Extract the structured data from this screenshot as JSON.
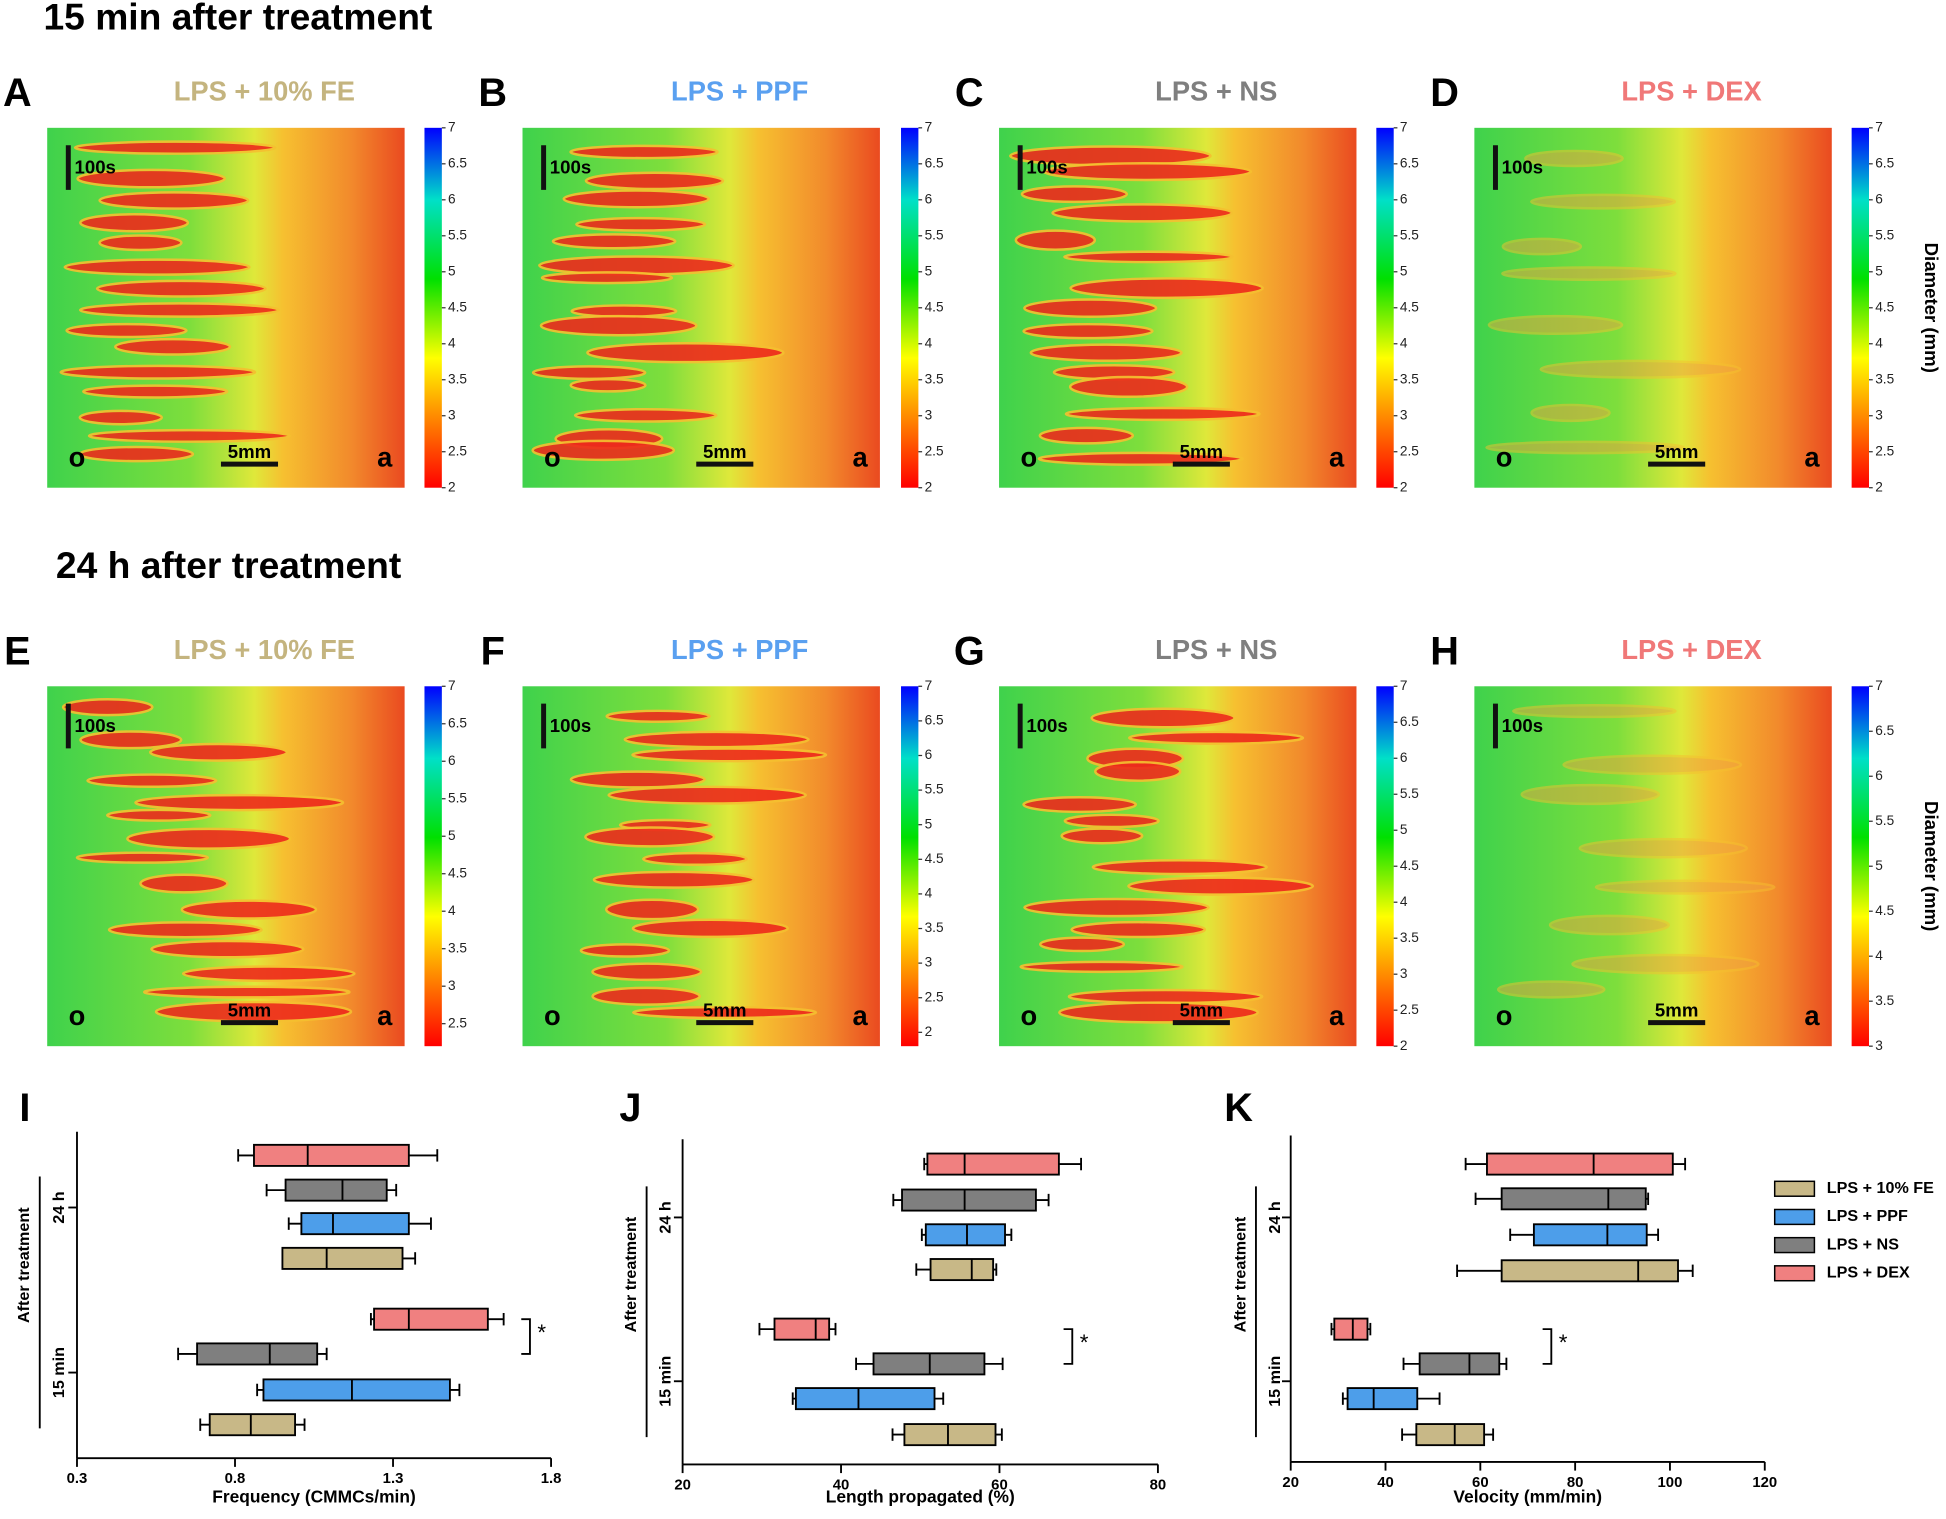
{
  "header": {
    "top": "15 min after treatment",
    "bottom": "24 h after treatment"
  },
  "map_labels": {
    "time": "100s",
    "space": "5mm",
    "oral": "o",
    "aboral": "a"
  },
  "colorbar_label": "Diameter (mm)",
  "maps": [
    {
      "letter": "A",
      "title": "LPS + 10% FE",
      "title_color": "#c4b47f",
      "cbar_lim": [
        2,
        7
      ],
      "cbar_ticks": [
        2,
        2.5,
        3,
        3.5,
        4,
        4.5,
        5,
        5.5,
        6,
        6.5,
        7
      ]
    },
    {
      "letter": "B",
      "title": "LPS + PPF",
      "title_color": "#5aa0f0",
      "cbar_lim": [
        2,
        7
      ],
      "cbar_ticks": [
        2,
        2.5,
        3,
        3.5,
        4,
        4.5,
        5,
        5.5,
        6,
        6.5,
        7
      ]
    },
    {
      "letter": "C",
      "title": "LPS + NS",
      "title_color": "#7f7f7f",
      "cbar_lim": [
        2,
        7
      ],
      "cbar_ticks": [
        2,
        2.5,
        3,
        3.5,
        4,
        4.5,
        5,
        5.5,
        6,
        6.5,
        7
      ]
    },
    {
      "letter": "D",
      "title": "LPS + DEX",
      "title_color": "#f07878",
      "cbar_lim": [
        2,
        7
      ],
      "cbar_ticks": [
        2,
        2.5,
        3,
        3.5,
        4,
        4.5,
        5,
        5.5,
        6,
        6.5,
        7
      ]
    },
    {
      "letter": "E",
      "title": "LPS + 10% FE",
      "title_color": "#c4b47f",
      "cbar_lim": [
        2.2,
        7
      ],
      "cbar_ticks": [
        2.5,
        3,
        3.5,
        4,
        4.5,
        5,
        5.5,
        6,
        6.5,
        7
      ]
    },
    {
      "letter": "F",
      "title": "LPS + PPF",
      "title_color": "#5aa0f0",
      "cbar_lim": [
        1.8,
        7
      ],
      "cbar_ticks": [
        2,
        2.5,
        3,
        3.5,
        4,
        4.5,
        5,
        5.5,
        6,
        6.5,
        7
      ]
    },
    {
      "letter": "G",
      "title": "LPS + NS",
      "title_color": "#7f7f7f",
      "cbar_lim": [
        2,
        7
      ],
      "cbar_ticks": [
        2,
        2.5,
        3,
        3.5,
        4,
        4.5,
        5,
        5.5,
        6,
        6.5,
        7
      ]
    },
    {
      "letter": "H",
      "title": "LPS + DEX",
      "title_color": "#f07878",
      "cbar_lim": [
        3,
        7
      ],
      "cbar_ticks": [
        3,
        3.5,
        4,
        4.5,
        5,
        5.5,
        6,
        6.5,
        7
      ]
    }
  ],
  "chart_data": [
    {
      "type": "box",
      "letter": "I",
      "xlabel": "Frequency (CMMCs/min)",
      "ylabel": "After treatment",
      "groups": [
        "24 h",
        "15 min"
      ],
      "xlim": [
        0.3,
        1.8
      ],
      "xticks": [
        0.3,
        0.8,
        1.3,
        1.8
      ],
      "annotation": "*",
      "series": [
        {
          "color": "#f08080",
          "low": [
            0.81,
            1.23
          ],
          "q1": [
            0.86,
            1.24
          ],
          "median": [
            1.03,
            1.35
          ],
          "q3": [
            1.35,
            1.6
          ],
          "high": [
            1.44,
            1.65
          ]
        },
        {
          "color": "#7f7f7f",
          "low": [
            0.9,
            0.62
          ],
          "q1": [
            0.96,
            0.68
          ],
          "median": [
            1.14,
            0.91
          ],
          "q3": [
            1.28,
            1.06
          ],
          "high": [
            1.31,
            1.09
          ]
        },
        {
          "color": "#4d9eea",
          "low": [
            0.97,
            0.87
          ],
          "q1": [
            1.01,
            0.89
          ],
          "median": [
            1.11,
            1.17
          ],
          "q3": [
            1.35,
            1.48
          ],
          "high": [
            1.42,
            1.51
          ]
        },
        {
          "color": "#c8b887",
          "low": [
            0.95,
            0.69
          ],
          "q1": [
            0.95,
            0.72
          ],
          "median": [
            1.09,
            0.85
          ],
          "q3": [
            1.33,
            0.99
          ],
          "high": [
            1.37,
            1.02
          ]
        }
      ]
    },
    {
      "type": "box",
      "letter": "J",
      "xlabel": "Length propagated (%)",
      "ylabel": "After treatment",
      "groups": [
        "24 h",
        "15 min"
      ],
      "xlim": [
        20,
        80
      ],
      "xticks": [
        20,
        40,
        60,
        80
      ],
      "annotation": "*",
      "series": [
        {
          "color": "#f08080",
          "low": [
            50.5,
            29.7
          ],
          "q1": [
            50.9,
            31.6
          ],
          "median": [
            55.6,
            36.8
          ],
          "q3": [
            67.5,
            38.5
          ],
          "high": [
            70.3,
            39.3
          ]
        },
        {
          "color": "#7f7f7f",
          "low": [
            46.6,
            41.9
          ],
          "q1": [
            47.7,
            44.1
          ],
          "median": [
            55.6,
            51.2
          ],
          "q3": [
            64.6,
            58.1
          ],
          "high": [
            66.2,
            60.4
          ]
        },
        {
          "color": "#4d9eea",
          "low": [
            50.2,
            33.9
          ],
          "q1": [
            50.7,
            34.3
          ],
          "median": [
            55.9,
            42.2
          ],
          "q3": [
            60.7,
            51.8
          ],
          "high": [
            61.5,
            52.9
          ]
        },
        {
          "color": "#c8b887",
          "low": [
            49.5,
            46.5
          ],
          "q1": [
            51.3,
            48.0
          ],
          "median": [
            56.5,
            53.5
          ],
          "q3": [
            59.2,
            59.5
          ],
          "high": [
            59.6,
            60.3
          ]
        }
      ]
    },
    {
      "type": "box",
      "letter": "K",
      "xlabel": "Velocity (mm/min)",
      "ylabel": "After treatment",
      "groups": [
        "24 h",
        "15 min"
      ],
      "xlim": [
        20,
        120
      ],
      "xticks": [
        20,
        40,
        60,
        80,
        100,
        120
      ],
      "annotation": "*",
      "series": [
        {
          "name": "LPS + DEX",
          "color": "#f08080",
          "low": [
            56.9,
            28.6
          ],
          "q1": [
            61.4,
            29.2
          ],
          "median": [
            83.9,
            33.1
          ],
          "q3": [
            100.6,
            36.2
          ],
          "high": [
            103.2,
            36.8
          ]
        },
        {
          "name": "LPS + NS",
          "color": "#7f7f7f",
          "low": [
            59.0,
            43.8
          ],
          "q1": [
            64.5,
            47.2
          ],
          "median": [
            87.0,
            57.7
          ],
          "q3": [
            94.9,
            64.0
          ],
          "high": [
            95.4,
            65.5
          ]
        },
        {
          "name": "LPS + PPF",
          "color": "#4d9eea",
          "low": [
            66.3,
            31.0
          ],
          "q1": [
            71.3,
            32.0
          ],
          "median": [
            86.8,
            37.5
          ],
          "q3": [
            95.1,
            46.7
          ],
          "high": [
            97.5,
            51.4
          ]
        },
        {
          "name": "LPS + 10% FE",
          "color": "#c8b887",
          "low": [
            55.1,
            43.5
          ],
          "q1": [
            64.5,
            46.5
          ],
          "median": [
            93.3,
            54.6
          ],
          "q3": [
            101.7,
            60.8
          ],
          "high": [
            104.8,
            62.7
          ]
        }
      ]
    }
  ]
}
